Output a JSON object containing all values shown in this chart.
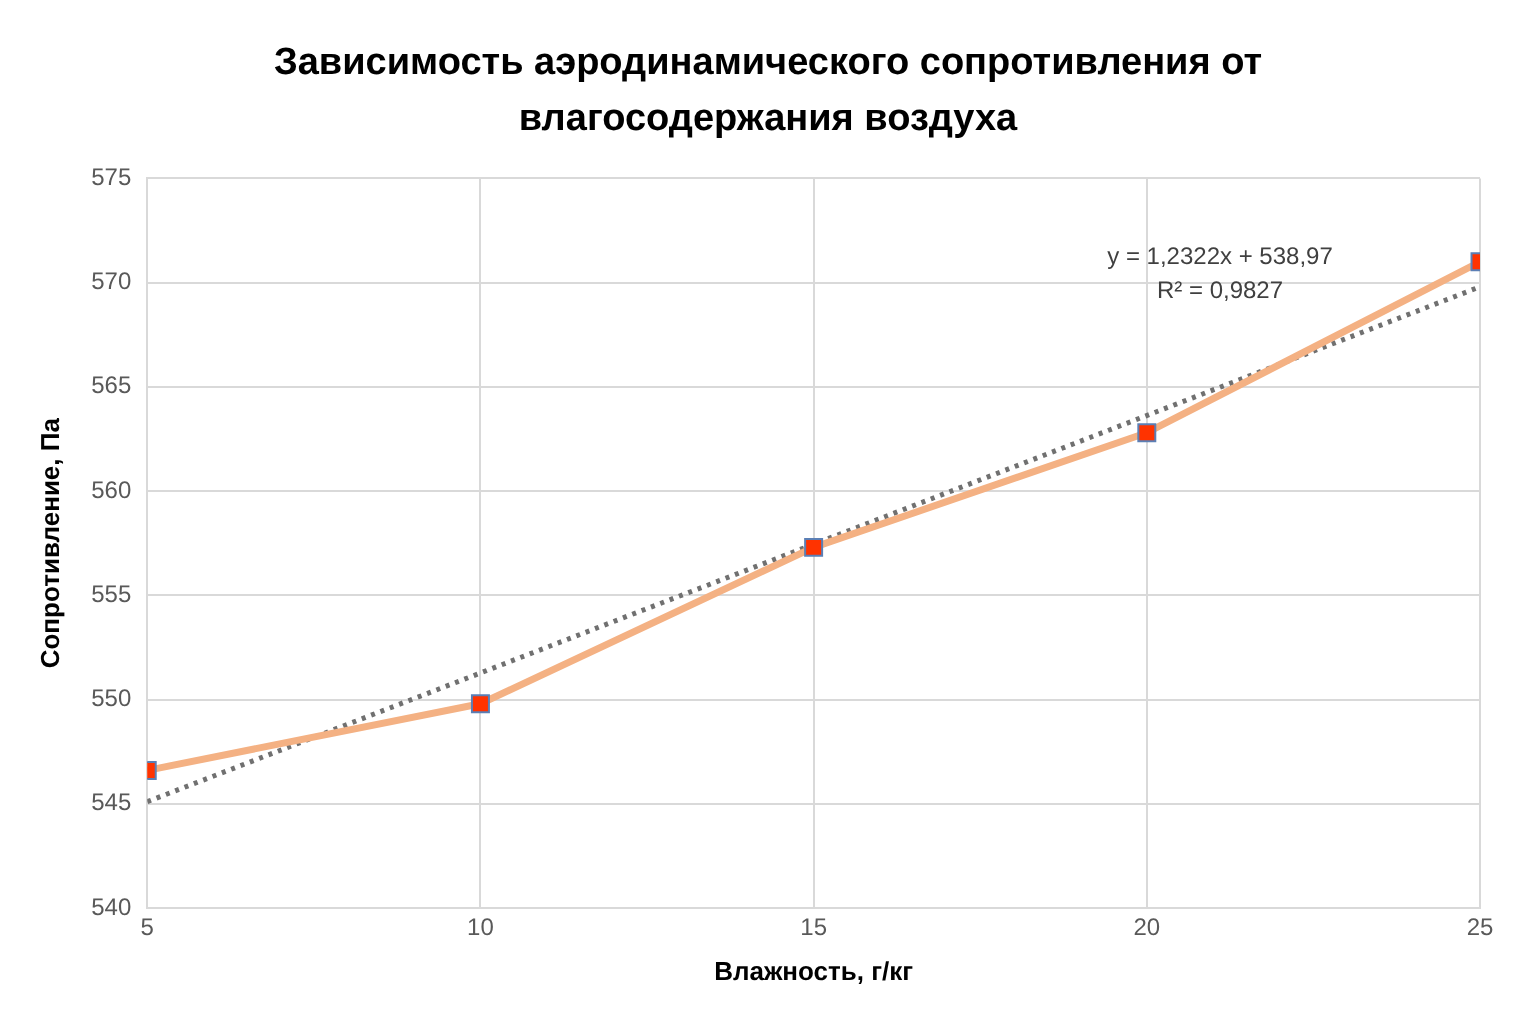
{
  "chart_data": {
    "type": "line",
    "title": "Зависимость аэродинамического сопротивления от влагосодержания воздуха",
    "xlabel": "Влажность, г/кг",
    "ylabel": "Сопротивление, Па",
    "x": [
      5,
      10,
      15,
      20,
      25
    ],
    "series": [
      {
        "color": "#f4b183",
        "colors": [
          "#ff3300",
          "#ff3300",
          "#ff3300",
          "#ff3300",
          "#ff3300"
        ],
        "marker": "square",
        "values": [
          546.6,
          549.8,
          557.3,
          562.8,
          571.0
        ]
      },
      {
        "color": "#707070",
        "x": [
          5,
          25
        ],
        "values": [
          545.1,
          569.8
        ],
        "marker": "none",
        "line_style": "dotted"
      }
    ],
    "annotations": [
      "y = 1,2322x + 538,97",
      "R² = 0,9827"
    ],
    "xlim": [
      5,
      25
    ],
    "xticks": [
      5,
      10,
      15,
      20,
      25
    ],
    "ylim": [
      540,
      575
    ],
    "yticks": [
      540,
      545,
      550,
      555,
      560,
      565,
      570,
      575
    ],
    "grid": true,
    "legend": false
  }
}
